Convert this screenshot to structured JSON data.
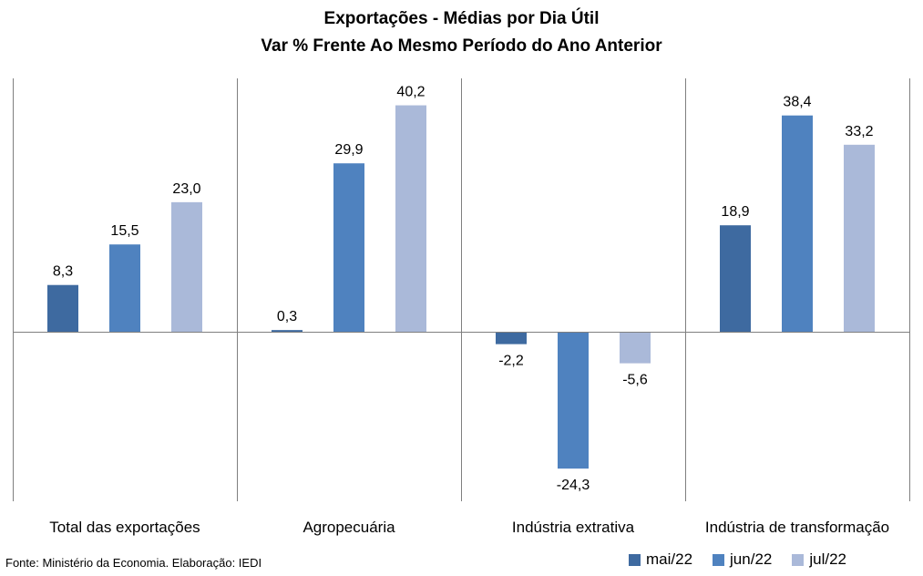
{
  "header": {
    "title_line1": "Exportações - Médias por Dia Útil",
    "title_line2": "Var % Frente Ao Mesmo Período do Ano Anterior"
  },
  "footer": {
    "source": "Fonte: Ministério da Economia. Elaboração: IEDI"
  },
  "chart_data": {
    "type": "bar",
    "title": "Exportações - Médias por Dia Útil",
    "subtitle": "Var % Frente Ao Mesmo Período do Ano Anterior",
    "categories": [
      "Total das exportações",
      "Agropecuária",
      "Indústria extrativa",
      "Indústria de transformação"
    ],
    "series": [
      {
        "name": "mai/22",
        "color": "#3e6aa0",
        "values": [
          8.3,
          0.3,
          -2.2,
          18.9
        ],
        "labels": [
          "8,3",
          "0,3",
          "-2,2",
          "18,9"
        ]
      },
      {
        "name": "jun/22",
        "color": "#4f82bf",
        "values": [
          15.5,
          29.9,
          -24.3,
          38.4
        ],
        "labels": [
          "15,5",
          "29,9",
          "-24,3",
          "38,4"
        ]
      },
      {
        "name": "jul/22",
        "color": "#aab9d9",
        "values": [
          23.0,
          40.2,
          -5.6,
          33.2
        ],
        "labels": [
          "23,0",
          "40,2",
          "-5,6",
          "33,2"
        ]
      }
    ],
    "ylim": [
      -28,
      45
    ],
    "grid": false,
    "legend": "bottom-right"
  }
}
